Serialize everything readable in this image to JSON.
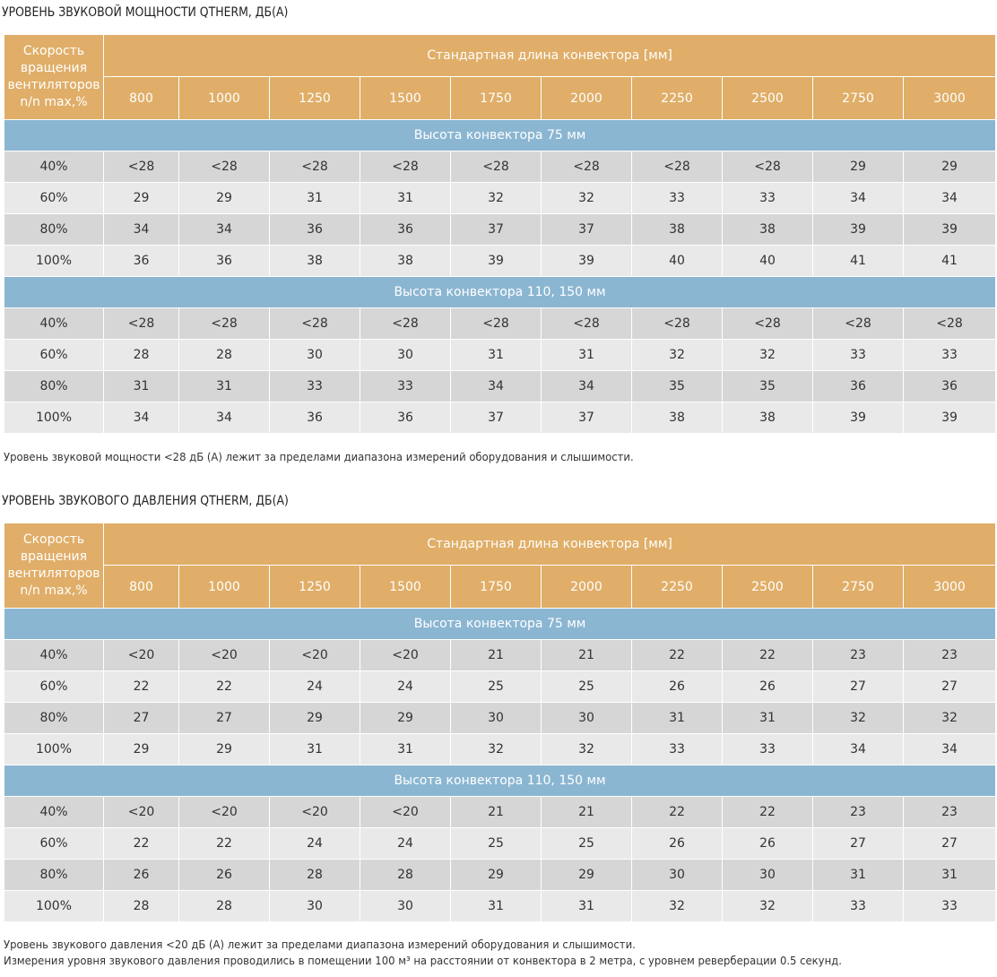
{
  "tables": [
    {
      "title": "УРОВЕНЬ ЗВУКОВОЙ МОЩНОСТИ QTHERM, ДБ(А)",
      "header_first": [
        "Скорость",
        "вращения",
        "вентиляторов",
        "n/n max,%"
      ],
      "header_span": "Стандартная длина конвектора [мм]",
      "lengths": [
        "800",
        "1000",
        "1250",
        "1500",
        "1750",
        "2000",
        "2250",
        "2500",
        "2750",
        "3000"
      ],
      "groups": [
        {
          "label": "Высота конвектора 75 мм",
          "rows": [
            {
              "speed": "40%",
              "values": [
                "<28",
                "<28",
                "<28",
                "<28",
                "<28",
                "<28",
                "<28",
                "<28",
                "29",
                "29"
              ]
            },
            {
              "speed": "60%",
              "values": [
                "29",
                "29",
                "31",
                "31",
                "32",
                "32",
                "33",
                "33",
                "34",
                "34"
              ]
            },
            {
              "speed": "80%",
              "values": [
                "34",
                "34",
                "36",
                "36",
                "37",
                "37",
                "38",
                "38",
                "39",
                "39"
              ]
            },
            {
              "speed": "100%",
              "values": [
                "36",
                "36",
                "38",
                "38",
                "39",
                "39",
                "40",
                "40",
                "41",
                "41"
              ]
            }
          ]
        },
        {
          "label": "Высота конвектора 110, 150 мм",
          "rows": [
            {
              "speed": "40%",
              "values": [
                "<28",
                "<28",
                "<28",
                "<28",
                "<28",
                "<28",
                "<28",
                "<28",
                "<28",
                "<28"
              ]
            },
            {
              "speed": "60%",
              "values": [
                "28",
                "28",
                "30",
                "30",
                "31",
                "31",
                "32",
                "32",
                "33",
                "33"
              ]
            },
            {
              "speed": "80%",
              "values": [
                "31",
                "31",
                "33",
                "33",
                "34",
                "34",
                "35",
                "35",
                "36",
                "36"
              ]
            },
            {
              "speed": "100%",
              "values": [
                "34",
                "34",
                "36",
                "36",
                "37",
                "37",
                "38",
                "38",
                "39",
                "39"
              ]
            }
          ]
        }
      ],
      "notes": [
        "Уровень звуковой мощности <28 дБ (А) лежит за пределами диапазона измерений оборудования и слышимости."
      ]
    },
    {
      "title": "УРОВЕНЬ ЗВУКОВОГО ДАВЛЕНИЯ QTHERM, ДБ(А)",
      "header_first": [
        "Скорость",
        "вращения",
        "вентиляторов",
        "n/n max,%"
      ],
      "header_span": "Стандартная длина конвектора [мм]",
      "lengths": [
        "800",
        "1000",
        "1250",
        "1500",
        "1750",
        "2000",
        "2250",
        "2500",
        "2750",
        "3000"
      ],
      "groups": [
        {
          "label": "Высота конвектора 75 мм",
          "rows": [
            {
              "speed": "40%",
              "values": [
                "<20",
                "<20",
                "<20",
                "<20",
                "21",
                "21",
                "22",
                "22",
                "23",
                "23"
              ]
            },
            {
              "speed": "60%",
              "values": [
                "22",
                "22",
                "24",
                "24",
                "25",
                "25",
                "26",
                "26",
                "27",
                "27"
              ]
            },
            {
              "speed": "80%",
              "values": [
                "27",
                "27",
                "29",
                "29",
                "30",
                "30",
                "31",
                "31",
                "32",
                "32"
              ]
            },
            {
              "speed": "100%",
              "values": [
                "29",
                "29",
                "31",
                "31",
                "32",
                "32",
                "33",
                "33",
                "34",
                "34"
              ]
            }
          ]
        },
        {
          "label": "Высота конвектора 110, 150 мм",
          "rows": [
            {
              "speed": "40%",
              "values": [
                "<20",
                "<20",
                "<20",
                "<20",
                "21",
                "21",
                "22",
                "22",
                "23",
                "23"
              ]
            },
            {
              "speed": "60%",
              "values": [
                "22",
                "22",
                "24",
                "24",
                "25",
                "25",
                "26",
                "26",
                "27",
                "27"
              ]
            },
            {
              "speed": "80%",
              "values": [
                "26",
                "26",
                "28",
                "28",
                "29",
                "29",
                "30",
                "30",
                "31",
                "31"
              ]
            },
            {
              "speed": "100%",
              "values": [
                "28",
                "28",
                "30",
                "30",
                "31",
                "31",
                "32",
                "32",
                "33",
                "33"
              ]
            }
          ]
        }
      ],
      "notes": [
        "Уровень звукового давления <20 дБ (А) лежит за пределами диапазона измерений оборудования и слышимости.",
        "Измерения уровня звукового давления проводились в помещении 100 м³ на расстоянии от конвектора в 2 метра, с уровнем реверберации 0.5 секунд."
      ]
    }
  ]
}
